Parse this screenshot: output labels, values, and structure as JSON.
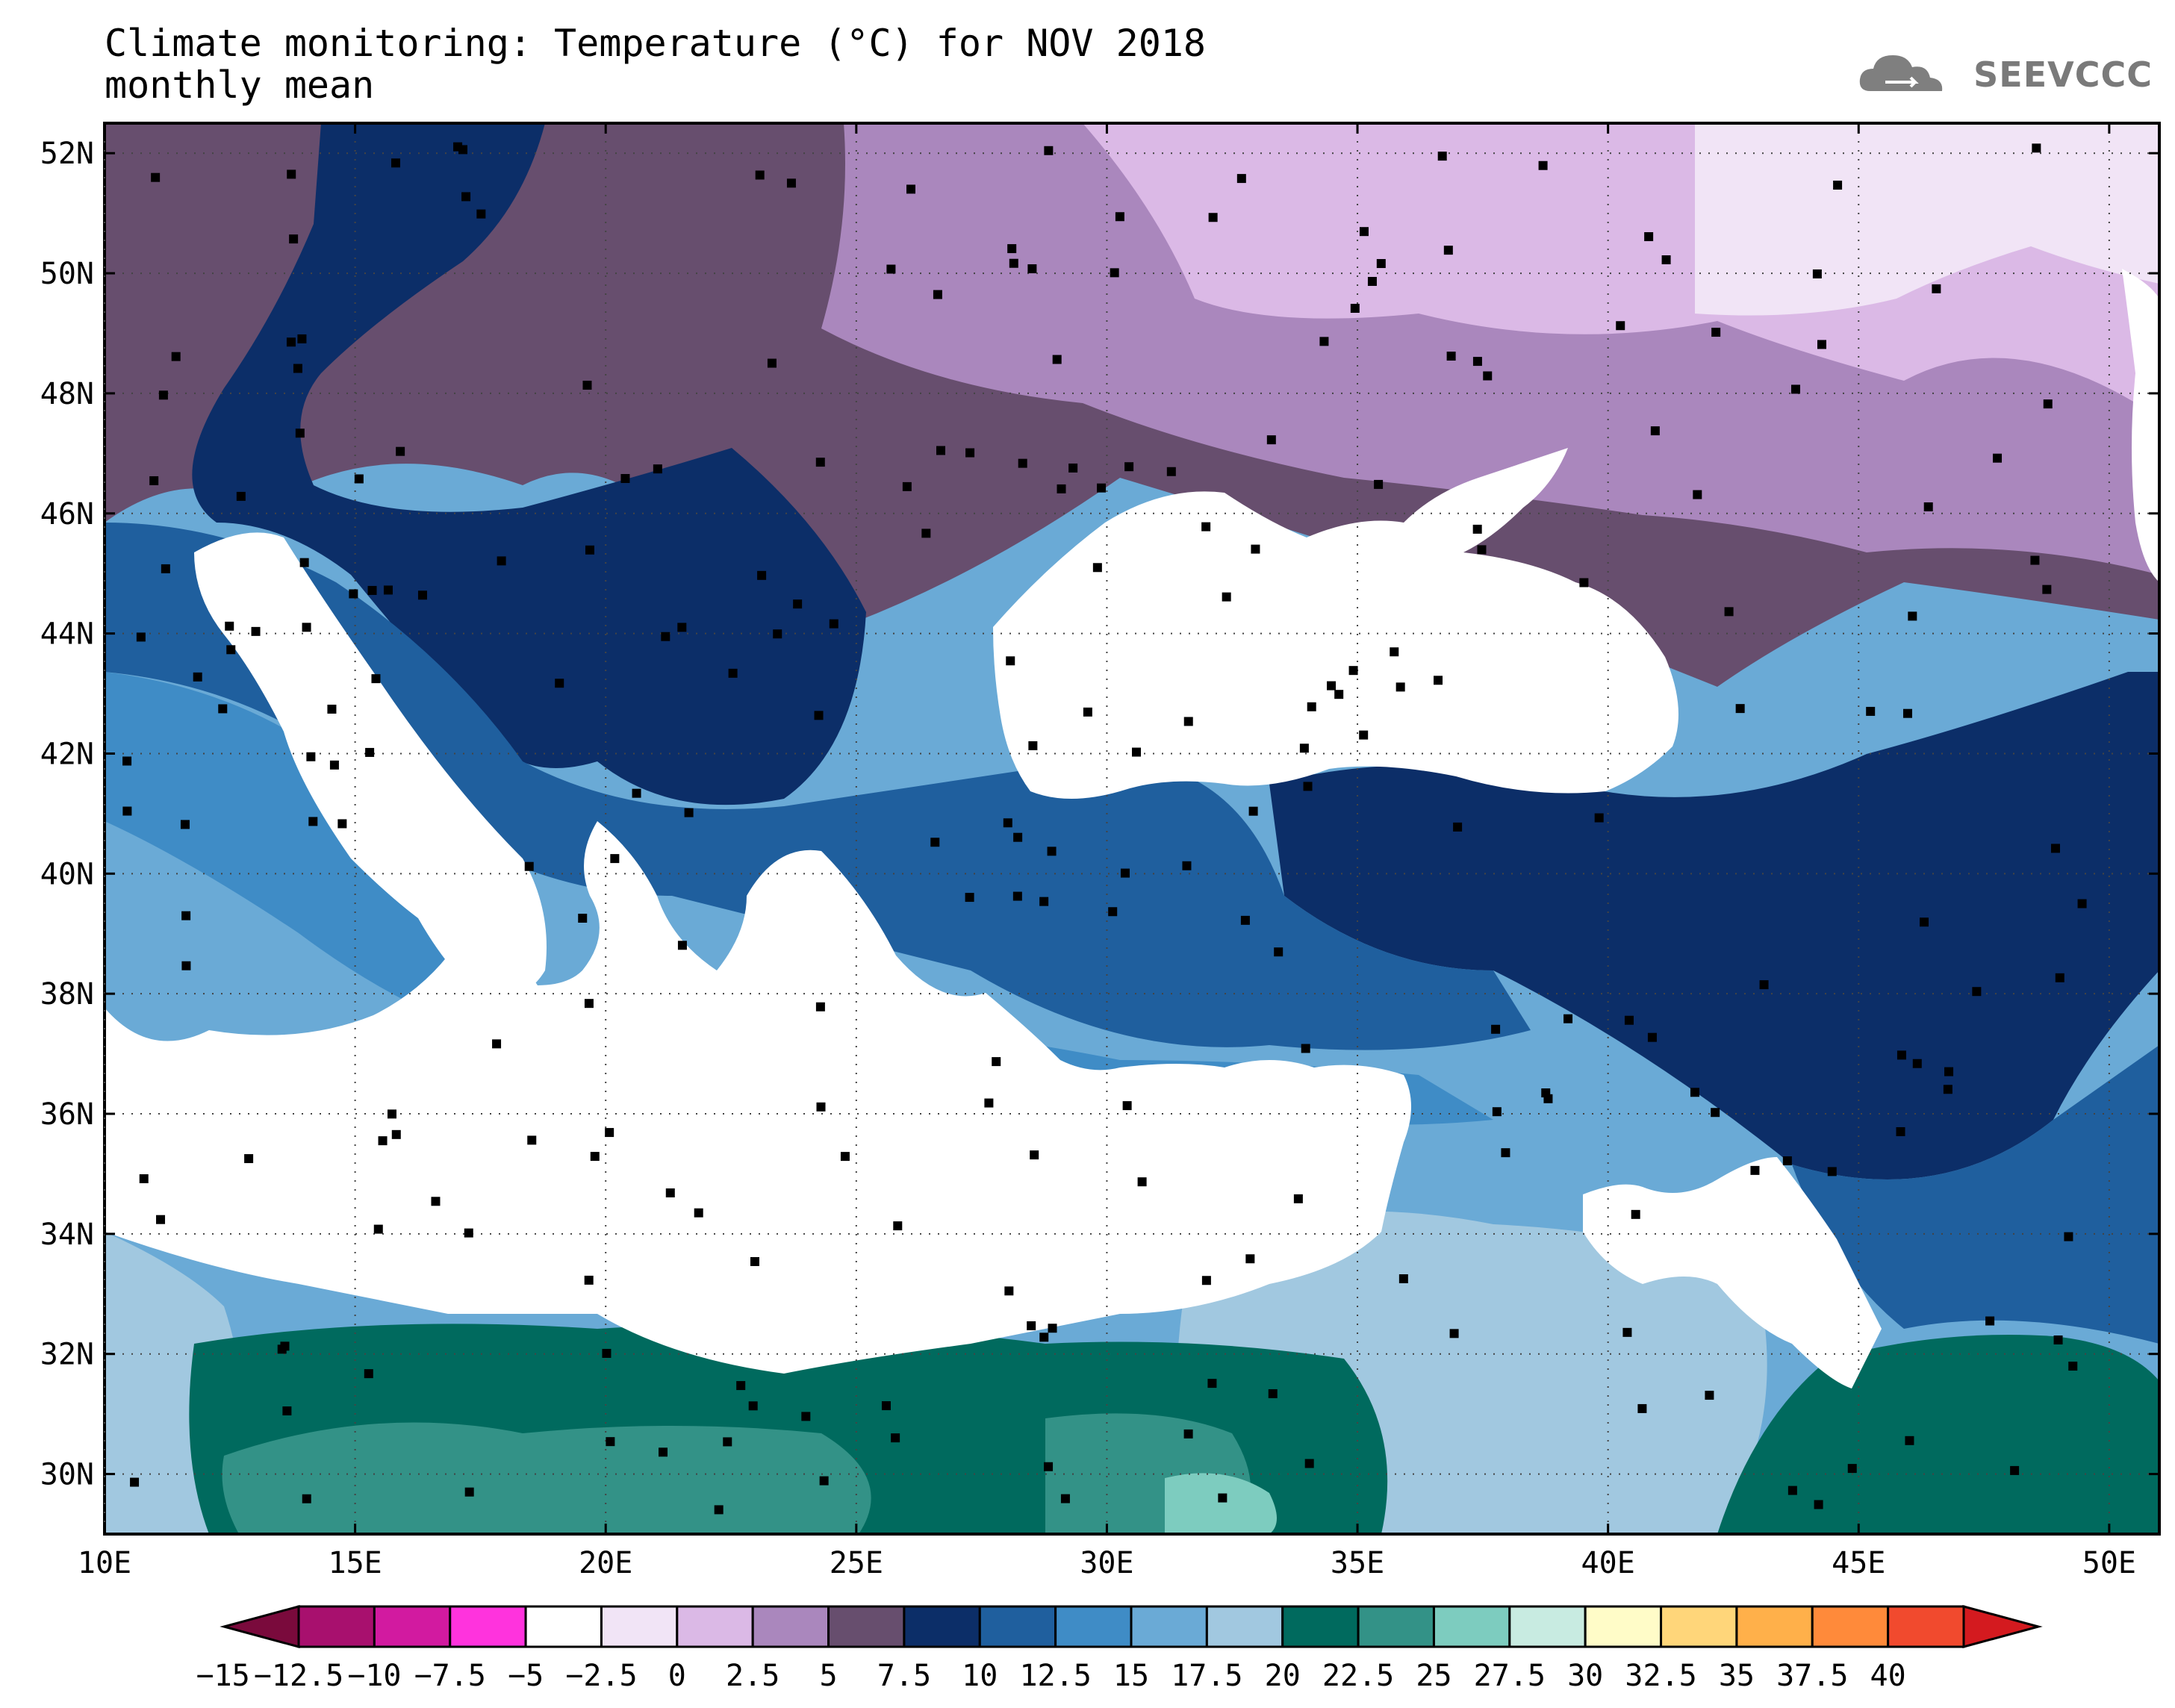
{
  "title": {
    "line1": "Climate monitoring: Temperature (°C) for NOV 2018",
    "line2": "monthly mean"
  },
  "logo": {
    "text": "SEEVCCC",
    "icon": "cloud-icon"
  },
  "map": {
    "lat_ticks": [
      "52N",
      "50N",
      "48N",
      "46N",
      "44N",
      "42N",
      "40N",
      "38N",
      "36N",
      "34N",
      "32N",
      "30N"
    ],
    "lon_ticks": [
      "10E",
      "15E",
      "20E",
      "25E",
      "30E",
      "35E",
      "40E",
      "45E",
      "50E"
    ],
    "extent": {
      "lon": [
        10,
        51
      ],
      "lat": [
        29,
        52.5
      ]
    }
  },
  "colorbar": {
    "labels": [
      "−15",
      "−12.5",
      "−10",
      "−7.5",
      "−5",
      "−2.5",
      "0",
      "2.5",
      "5",
      "7.5",
      "10",
      "12.5",
      "15",
      "17.5",
      "20",
      "22.5",
      "25",
      "27.5",
      "30",
      "32.5",
      "35",
      "37.5",
      "40"
    ],
    "colors": [
      "#7a0a3c",
      "#a8106e",
      "#d21aa0",
      "#ff33dd",
      "#ffffff",
      "#f1e4f6",
      "#dbb9e6",
      "#aa87bd",
      "#674e6e",
      "#0c2e68",
      "#1f5f9e",
      "#3f8cc6",
      "#6aaad6",
      "#a1c8e0",
      "#006a5e",
      "#339287",
      "#7dccbf",
      "#c8ebe1",
      "#fffcc8",
      "#ffd67a",
      "#ffb04a",
      "#ff8a3a",
      "#f14a2e",
      "#d41a1f"
    ]
  }
}
